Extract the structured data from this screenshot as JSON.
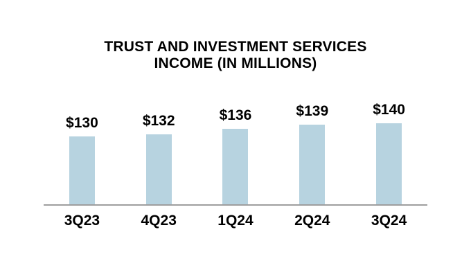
{
  "chart_data": {
    "type": "bar",
    "title": "TRUST AND INVESTMENT SERVICES INCOME (IN MILLIONS)",
    "title_lines": [
      "TRUST AND INVESTMENT SERVICES",
      "INCOME (IN MILLIONS)"
    ],
    "categories": [
      "3Q23",
      "4Q23",
      "1Q24",
      "2Q24",
      "3Q24"
    ],
    "values": [
      130,
      132,
      136,
      139,
      140
    ],
    "value_labels": [
      "$130",
      "$132",
      "$136",
      "$139",
      "$140"
    ],
    "xlabel": "",
    "ylabel": "",
    "ylim": [
      80,
      160
    ],
    "grid": false,
    "legend": false,
    "bar_color": "#B7D3E0",
    "axis_line_color": "#9E9E9E",
    "text_color": "#000000",
    "background_color": "#FFFFFF"
  }
}
